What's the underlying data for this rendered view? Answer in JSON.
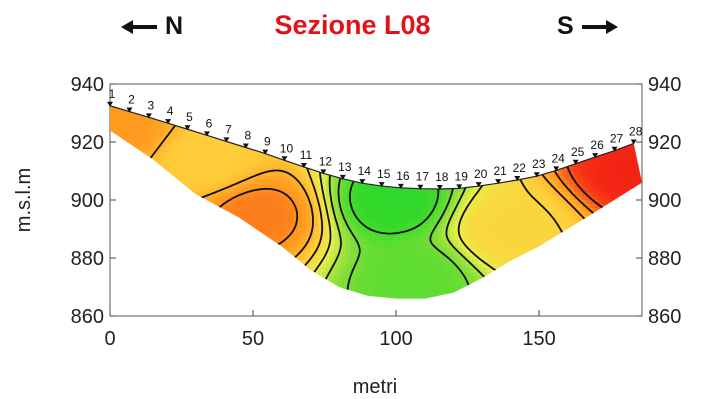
{
  "header": {
    "title": "Sezione L08",
    "north_label": "N",
    "south_label": "S"
  },
  "chart_data": {
    "type": "heatmap",
    "title": "Sezione L08",
    "xlabel": "metri",
    "ylabel": "m.s.l.m",
    "xlim": [
      0,
      186
    ],
    "ylim": [
      860,
      940
    ],
    "x_ticks": [
      0,
      50,
      100,
      150
    ],
    "y_ticks": [
      860,
      880,
      900,
      920,
      940
    ],
    "colorscale": [
      "#2fd82a",
      "#8ee03a",
      "#e9ee4a",
      "#ffce3a",
      "#ff9a1f",
      "#f42414"
    ],
    "electrodes": {
      "labels": [
        "1",
        "2",
        "3",
        "4",
        "5",
        "6",
        "7",
        "8",
        "9",
        "10",
        "11",
        "12",
        "13",
        "14",
        "15",
        "16",
        "17",
        "18",
        "19",
        "20",
        "21",
        "22",
        "23",
        "24",
        "25",
        "26",
        "27",
        "28"
      ],
      "x": [
        0,
        6.8,
        13.6,
        20.3,
        27.1,
        33.9,
        40.7,
        47.5,
        54.3,
        61.0,
        67.8,
        74.6,
        81.4,
        88.2,
        95.0,
        101.7,
        108.5,
        115.3,
        122.1,
        128.9,
        135.7,
        142.4,
        149.2,
        156.0,
        162.8,
        169.6,
        176.4,
        183.1
      ],
      "z": [
        932.5,
        930.5,
        928.5,
        926.5,
        924.4,
        922.3,
        920.2,
        918.1,
        916.0,
        913.7,
        911.4,
        909.2,
        907.3,
        905.8,
        904.8,
        904.2,
        903.9,
        903.8,
        904.0,
        904.8,
        905.8,
        906.9,
        908.2,
        910.2,
        912.5,
        914.8,
        917.0,
        919.5
      ]
    },
    "section_bottom": {
      "x": [
        0,
        15,
        30,
        45,
        60,
        70,
        80,
        90,
        100,
        110,
        120,
        130,
        140,
        150,
        165,
        186
      ],
      "z": [
        924,
        914,
        902,
        894,
        884,
        876,
        870,
        867,
        866,
        866,
        868,
        873,
        879,
        884,
        893,
        906
      ]
    },
    "field_centers": [
      {
        "x": 99,
        "z": 900,
        "value": 0.0
      },
      {
        "x": 107,
        "z": 873,
        "value": 0.1
      },
      {
        "x": 34,
        "z": 914,
        "value": 0.6
      },
      {
        "x": 52,
        "z": 895,
        "value": 0.85
      },
      {
        "x": 140,
        "z": 890,
        "value": 0.55
      },
      {
        "x": 183,
        "z": 910,
        "value": 1.0
      },
      {
        "x": 2,
        "z": 925,
        "value": 0.8
      }
    ]
  }
}
